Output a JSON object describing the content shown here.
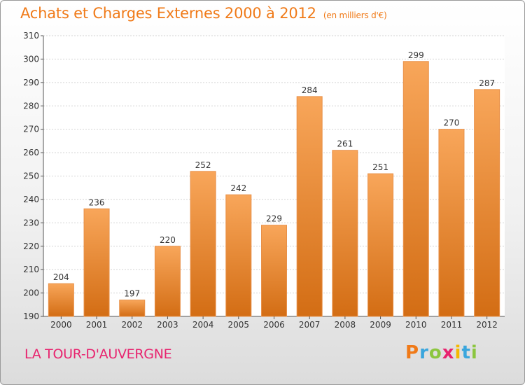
{
  "title": "Achats et Charges Externes 2000 à 2012",
  "subtitle": "(en milliers d'€)",
  "location": "LA TOUR-D'AUVERGNE",
  "brand": {
    "name": "Proxiti",
    "letters": [
      {
        "ch": "P",
        "color": "#f07a18"
      },
      {
        "ch": "r",
        "color": "#3aa6dd"
      },
      {
        "ch": "o",
        "color": "#8cc63f"
      },
      {
        "ch": "x",
        "color": "#e8236e"
      },
      {
        "ch": "i",
        "color": "#f5b800"
      },
      {
        "ch": "t",
        "color": "#3aa6dd"
      },
      {
        "ch": "i",
        "color": "#8cc63f"
      }
    ]
  },
  "colors": {
    "accent": "#f07a18",
    "bar_top": "#f8a65a",
    "bar_bottom": "#d36d14",
    "location": "#e8236e"
  },
  "chart_data": {
    "type": "bar",
    "categories": [
      "2000",
      "2001",
      "2002",
      "2003",
      "2004",
      "2005",
      "2006",
      "2007",
      "2008",
      "2009",
      "2010",
      "2011",
      "2012"
    ],
    "values": [
      204,
      236,
      197,
      220,
      252,
      242,
      229,
      284,
      261,
      251,
      299,
      270,
      287
    ],
    "ylim": [
      190,
      310
    ],
    "yticks": [
      190,
      200,
      210,
      220,
      230,
      240,
      250,
      260,
      270,
      280,
      290,
      300,
      310
    ],
    "grid": true,
    "data_labels": true
  }
}
